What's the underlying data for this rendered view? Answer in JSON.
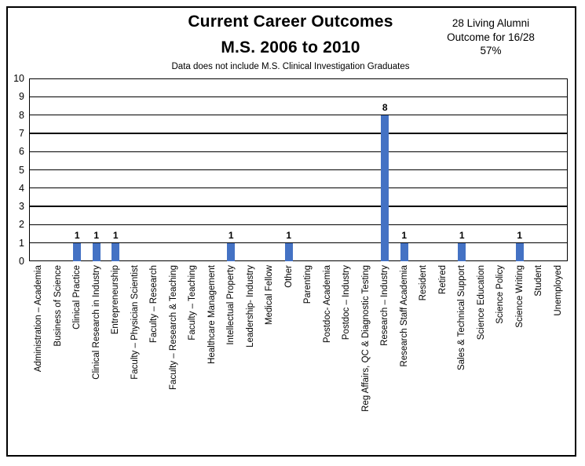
{
  "header": {
    "title_line1": "Current Career Outcomes",
    "title_line2": "M.S. 2006 to 2010",
    "subtitle": "Data does not include M.S. Clinical Investigation Graduates",
    "annotation": {
      "line1": "28 Living Alumni",
      "line2": "Outcome for 16/28",
      "line3": "57%"
    }
  },
  "chart_data": {
    "type": "bar",
    "title": "Current Career Outcomes M.S. 2006 to 2010",
    "subtitle": "Data does not include M.S. Clinical Investigation Graduates",
    "categories": [
      "Administration – Academia",
      "Business of Science",
      "Clinical Practice",
      "Clinical Research in Industry",
      "Entrepreneurship",
      "Faculty – Physician Scientist",
      "Faculty – Research",
      "Faculty – Research & Teaching",
      "Faculty – Teaching",
      "Healthcare Management",
      "Intellectual Property",
      "Leadership- Industry",
      "Medical Fellow",
      "Other",
      "Parenting",
      "Postdoc- Academia",
      "Postdoc – Industry",
      "Reg Affairs, QC & Diagnostic Testing",
      "Research – Industry",
      "Research Staff Academia",
      "Resident",
      "Retired",
      "Sales & Technical Support",
      "Science Education",
      "Science Policy",
      "Science Writing",
      "Student",
      "Unemployed"
    ],
    "values": [
      0,
      0,
      1,
      1,
      1,
      0,
      0,
      0,
      0,
      0,
      1,
      0,
      0,
      1,
      0,
      0,
      0,
      0,
      8,
      1,
      0,
      0,
      1,
      0,
      0,
      1,
      0,
      0
    ],
    "xlabel": "",
    "ylabel": "",
    "ylim": [
      0,
      10
    ],
    "yticks": [
      0,
      1,
      2,
      3,
      4,
      5,
      6,
      7,
      8,
      9,
      10
    ],
    "grid": true,
    "legend": false,
    "bar_color": "#4472C4",
    "value_labels_on_nonzero_bars": true
  }
}
